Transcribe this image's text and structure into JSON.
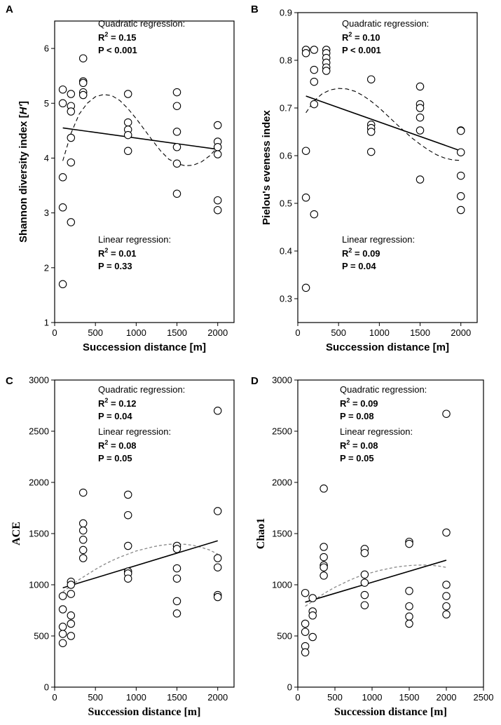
{
  "chart_data": [
    {
      "panel": "A",
      "type": "scatter",
      "xlabel": "Succession distance [m]",
      "ylabel_prefix": "Shannon diversity index [",
      "ylabel_italic": "H'",
      "ylabel_suffix": "]",
      "xlim": [
        0,
        2200
      ],
      "ylim": [
        1,
        6.5
      ],
      "xticks": [
        0,
        500,
        1000,
        1500,
        2000
      ],
      "yticks": [
        1,
        2,
        3,
        4,
        5,
        6
      ],
      "xtick_labels": [
        "0",
        "500",
        "1000",
        "1500",
        "2000"
      ],
      "ytick_labels": [
        "1",
        "2",
        "3",
        "4",
        "5",
        "6"
      ],
      "points": [
        [
          100,
          5.25
        ],
        [
          100,
          5.0
        ],
        [
          100,
          3.65
        ],
        [
          100,
          3.1
        ],
        [
          100,
          1.7
        ],
        [
          200,
          5.17
        ],
        [
          200,
          4.95
        ],
        [
          200,
          4.85
        ],
        [
          200,
          4.37
        ],
        [
          200,
          3.92
        ],
        [
          200,
          2.83
        ],
        [
          350,
          5.82
        ],
        [
          350,
          5.4
        ],
        [
          350,
          5.37
        ],
        [
          350,
          5.2
        ],
        [
          350,
          5.15
        ],
        [
          900,
          5.17
        ],
        [
          900,
          4.65
        ],
        [
          900,
          4.52
        ],
        [
          900,
          4.42
        ],
        [
          900,
          4.13
        ],
        [
          1500,
          5.2
        ],
        [
          1500,
          4.95
        ],
        [
          1500,
          4.48
        ],
        [
          1500,
          4.2
        ],
        [
          1500,
          3.9
        ],
        [
          1500,
          3.35
        ],
        [
          2000,
          4.6
        ],
        [
          2000,
          4.3
        ],
        [
          2000,
          4.2
        ],
        [
          2000,
          4.07
        ],
        [
          2000,
          3.23
        ],
        [
          2000,
          3.05
        ]
      ],
      "linear_fit": {
        "x": [
          100,
          2000
        ],
        "y": [
          4.55,
          4.16
        ],
        "style": "solid"
      },
      "quadratic_fit": {
        "style": "dashed-black",
        "x": [
          100,
          200,
          300,
          400,
          500,
          600,
          700,
          800,
          900,
          1000,
          1100,
          1200,
          1300,
          1400,
          1500,
          1600,
          1700,
          1800,
          1900,
          2000
        ],
        "y": [
          3.95,
          4.45,
          4.8,
          5.0,
          5.12,
          5.16,
          5.14,
          5.05,
          4.9,
          4.72,
          4.52,
          4.32,
          4.13,
          3.98,
          3.9,
          3.86,
          3.87,
          3.93,
          4.04,
          4.2
        ]
      },
      "annotations": {
        "quadratic_head": "Quadratic regression:",
        "quadratic_r2": "R",
        "quadratic_r2_value": " = 0.15",
        "quadratic_p": "P < 0.001",
        "linear_head": "Linear regression:",
        "linear_r2": "R",
        "linear_r2_value": " = 0.01",
        "linear_p": "P = 0.33"
      }
    },
    {
      "panel": "B",
      "type": "scatter",
      "xlabel": "Succession distance [m]",
      "ylabel": "Pielou's eveness index",
      "xlim": [
        0,
        2200
      ],
      "ylim": [
        0.25,
        0.9
      ],
      "xticks": [
        0,
        500,
        1000,
        1500,
        2000
      ],
      "yticks": [
        0.3,
        0.4,
        0.5,
        0.6,
        0.7,
        0.8,
        0.9
      ],
      "xtick_labels": [
        "0",
        "500",
        "1000",
        "1500",
        "2000"
      ],
      "ytick_labels": [
        "0.3",
        "0.4",
        "0.5",
        "0.6",
        "0.7",
        "0.8",
        "0.9"
      ],
      "points": [
        [
          100,
          0.822
        ],
        [
          100,
          0.815
        ],
        [
          100,
          0.61
        ],
        [
          100,
          0.512
        ],
        [
          100,
          0.323
        ],
        [
          200,
          0.822
        ],
        [
          200,
          0.78
        ],
        [
          200,
          0.755
        ],
        [
          200,
          0.708
        ],
        [
          200,
          0.477
        ],
        [
          350,
          0.822
        ],
        [
          350,
          0.815
        ],
        [
          350,
          0.805
        ],
        [
          350,
          0.795
        ],
        [
          350,
          0.785
        ],
        [
          350,
          0.778
        ],
        [
          900,
          0.76
        ],
        [
          900,
          0.665
        ],
        [
          900,
          0.658
        ],
        [
          900,
          0.65
        ],
        [
          900,
          0.608
        ],
        [
          1500,
          0.745
        ],
        [
          1500,
          0.708
        ],
        [
          1500,
          0.7
        ],
        [
          1500,
          0.68
        ],
        [
          1500,
          0.653
        ],
        [
          1500,
          0.55
        ],
        [
          2000,
          0.653
        ],
        [
          2000,
          0.652
        ],
        [
          2000,
          0.607
        ],
        [
          2000,
          0.558
        ],
        [
          2000,
          0.515
        ],
        [
          2000,
          0.486
        ]
      ],
      "linear_fit": {
        "x": [
          100,
          2000
        ],
        "y": [
          0.725,
          0.61
        ],
        "style": "solid"
      },
      "quadratic_fit": {
        "style": "dashed-black",
        "x": [
          100,
          200,
          300,
          400,
          500,
          600,
          700,
          800,
          900,
          1000,
          1100,
          1200,
          1300,
          1400,
          1500,
          1600,
          1700,
          1800,
          1900,
          2000
        ],
        "y": [
          0.69,
          0.715,
          0.73,
          0.738,
          0.741,
          0.74,
          0.735,
          0.726,
          0.714,
          0.7,
          0.684,
          0.668,
          0.652,
          0.637,
          0.624,
          0.612,
          0.602,
          0.595,
          0.591,
          0.59
        ]
      },
      "annotations": {
        "quadratic_head": "Quadratic regression:",
        "quadratic_r2": "R",
        "quadratic_r2_value": " = 0.10",
        "quadratic_p": "P < 0.001",
        "linear_head": "Linear regression:",
        "linear_r2": "R",
        "linear_r2_value": " = 0.09",
        "linear_p": "P = 0.04"
      }
    },
    {
      "panel": "C",
      "type": "scatter",
      "xlabel": "Succession distance [m]",
      "ylabel": "ACE",
      "xlim": [
        0,
        2200
      ],
      "ylim": [
        0,
        3000
      ],
      "xticks": [
        0,
        500,
        1000,
        1500,
        2000
      ],
      "yticks": [
        0,
        500,
        1000,
        1500,
        2000,
        2500,
        3000
      ],
      "xtick_labels": [
        "0",
        "500",
        "1000",
        "1500",
        "2000"
      ],
      "ytick_labels": [
        "0",
        "500",
        "1000",
        "1500",
        "2000",
        "2500",
        "3000"
      ],
      "points": [
        [
          100,
          890
        ],
        [
          100,
          760
        ],
        [
          100,
          590
        ],
        [
          100,
          520
        ],
        [
          100,
          430
        ],
        [
          200,
          1030
        ],
        [
          200,
          1000
        ],
        [
          200,
          910
        ],
        [
          200,
          700
        ],
        [
          200,
          620
        ],
        [
          200,
          500
        ],
        [
          350,
          1900
        ],
        [
          350,
          1600
        ],
        [
          350,
          1530
        ],
        [
          350,
          1440
        ],
        [
          350,
          1340
        ],
        [
          350,
          1260
        ],
        [
          900,
          1880
        ],
        [
          900,
          1680
        ],
        [
          900,
          1380
        ],
        [
          900,
          1130
        ],
        [
          900,
          1110
        ],
        [
          900,
          1060
        ],
        [
          1500,
          1380
        ],
        [
          1500,
          1350
        ],
        [
          1500,
          1160
        ],
        [
          1500,
          1060
        ],
        [
          1500,
          840
        ],
        [
          1500,
          720
        ],
        [
          2000,
          2700
        ],
        [
          2000,
          1720
        ],
        [
          2000,
          1260
        ],
        [
          2000,
          1170
        ],
        [
          2000,
          900
        ],
        [
          2000,
          880
        ]
      ],
      "linear_fit": {
        "x": [
          100,
          2000
        ],
        "y": [
          970,
          1430
        ],
        "style": "solid"
      },
      "quadratic_fit": {
        "style": "dashed-grey",
        "x": [
          100,
          200,
          300,
          400,
          500,
          600,
          700,
          800,
          900,
          1000,
          1100,
          1200,
          1300,
          1400,
          1500,
          1600,
          1700,
          1800,
          1900,
          2000
        ],
        "y": [
          930,
          990,
          1050,
          1100,
          1150,
          1195,
          1235,
          1270,
          1300,
          1330,
          1350,
          1370,
          1385,
          1395,
          1398,
          1395,
          1385,
          1365,
          1340,
          1300
        ]
      },
      "annotations": {
        "quadratic_head": "Quadratic regression:",
        "quadratic_r2": "R",
        "quadratic_r2_value": " = 0.12",
        "quadratic_p": "P = 0.04",
        "linear_head": "Linear regression:",
        "linear_r2": "R",
        "linear_r2_value": " = 0.08",
        "linear_p": "P = 0.05"
      }
    },
    {
      "panel": "D",
      "type": "scatter",
      "xlabel": "Succession distance [m]",
      "ylabel": "Chao1",
      "xlim": [
        0,
        2500
      ],
      "ylim": [
        0,
        3000
      ],
      "xticks": [
        0,
        500,
        1000,
        1500,
        2000,
        2500
      ],
      "yticks": [
        0,
        500,
        1000,
        1500,
        2000,
        2500,
        3000
      ],
      "xtick_labels": [
        "0",
        "500",
        "1000",
        "1500",
        "2000",
        "2500"
      ],
      "ytick_labels": [
        "0",
        "500",
        "1000",
        "1500",
        "2000",
        "2500",
        "3000"
      ],
      "points": [
        [
          100,
          920
        ],
        [
          100,
          620
        ],
        [
          100,
          540
        ],
        [
          100,
          400
        ],
        [
          100,
          340
        ],
        [
          200,
          870
        ],
        [
          200,
          740
        ],
        [
          200,
          700
        ],
        [
          200,
          490
        ],
        [
          350,
          1940
        ],
        [
          350,
          1370
        ],
        [
          350,
          1270
        ],
        [
          350,
          1190
        ],
        [
          350,
          1170
        ],
        [
          350,
          1090
        ],
        [
          900,
          1350
        ],
        [
          900,
          1310
        ],
        [
          900,
          1100
        ],
        [
          900,
          1020
        ],
        [
          900,
          900
        ],
        [
          900,
          800
        ],
        [
          1500,
          1420
        ],
        [
          1500,
          1400
        ],
        [
          1500,
          940
        ],
        [
          1500,
          790
        ],
        [
          1500,
          690
        ],
        [
          1500,
          620
        ],
        [
          2000,
          2670
        ],
        [
          2000,
          1510
        ],
        [
          2000,
          1000
        ],
        [
          2000,
          890
        ],
        [
          2000,
          790
        ],
        [
          2000,
          710
        ]
      ],
      "linear_fit": {
        "x": [
          100,
          2000
        ],
        "y": [
          830,
          1240
        ],
        "style": "solid"
      },
      "quadratic_fit": {
        "style": "dashed-grey",
        "x": [
          100,
          200,
          300,
          400,
          500,
          600,
          700,
          800,
          900,
          1000,
          1100,
          1200,
          1300,
          1400,
          1500,
          1600,
          1700,
          1800,
          1900,
          2000
        ],
        "y": [
          790,
          840,
          890,
          935,
          975,
          1010,
          1045,
          1075,
          1100,
          1120,
          1140,
          1155,
          1170,
          1180,
          1188,
          1192,
          1193,
          1190,
          1182,
          1170
        ]
      },
      "annotations": {
        "quadratic_head": "Quadratic regression:",
        "quadratic_r2": "R",
        "quadratic_r2_value": " = 0.09",
        "quadratic_p": "P = 0.08",
        "linear_head": "Linear regression:",
        "linear_r2": "R",
        "linear_r2_value": " = 0.08",
        "linear_p": "P = 0.05"
      }
    }
  ],
  "superscript_two": "2"
}
